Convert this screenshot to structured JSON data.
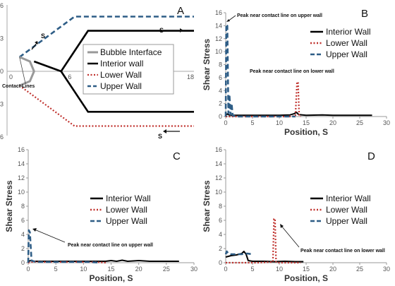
{
  "chart_data": [
    {
      "panel": "A",
      "type": "line",
      "panel_label": "A",
      "xlim": [
        0,
        18
      ],
      "ylim": [
        -6,
        6
      ],
      "x_ticks": [
        "0",
        "6",
        "18"
      ],
      "y_ticks": [
        "6",
        "3",
        "0",
        "-3",
        "-6"
      ],
      "legend": [
        "Bubble Interface",
        "Interior wall",
        "Lower Wall",
        "Upper Wall"
      ],
      "annotations": [
        "Contact Lines",
        "S",
        "S",
        "S"
      ],
      "series": [
        {
          "name": "Upper Wall",
          "style": "dashed",
          "color": "#2e5d86",
          "x": [
            1.2,
            6.5,
            18
          ],
          "y": [
            1.3,
            5.0,
            5.0
          ]
        },
        {
          "name": "Interior wall",
          "style": "solid",
          "color": "#000000",
          "x": [
            2.6,
            5.2,
            7.8,
            18
          ],
          "y": [
            0.9,
            0,
            -3.7,
            -3.7
          ]
        },
        {
          "name": "Interior wall upper",
          "style": "solid",
          "color": "#000000",
          "x": [
            5.2,
            7.8,
            18
          ],
          "y": [
            0,
            3.7,
            3.7
          ]
        },
        {
          "name": "Lower Wall",
          "style": "dotted",
          "color": "#c0322e",
          "x": [
            1.2,
            6.5,
            18
          ],
          "y": [
            -1.3,
            -5.0,
            -5.0
          ]
        },
        {
          "name": "Bubble Interface",
          "style": "solid",
          "color": "#999999",
          "x": [
            1.2,
            2.2,
            2.6,
            2.2,
            1.2
          ],
          "y": [
            1.3,
            0.9,
            0,
            -0.9,
            -1.3
          ]
        }
      ]
    },
    {
      "panel": "B",
      "type": "line",
      "panel_label": "B",
      "xlabel": "Position, S",
      "ylabel": "Shear Stress",
      "xlim": [
        0,
        30
      ],
      "ylim": [
        0,
        16
      ],
      "x_ticks": [
        "0",
        "5",
        "10",
        "15",
        "20",
        "25",
        "30"
      ],
      "y_ticks": [
        "0",
        "2",
        "4",
        "6",
        "8",
        "10",
        "12",
        "14",
        "16"
      ],
      "legend": [
        "Interior Wall",
        "Lower Wall",
        "Upper Wall"
      ],
      "annotations": [
        "Peak near contact line on upper wall",
        "Peak near contact line on lower wall"
      ],
      "series": [
        {
          "name": "Interior Wall",
          "style": "solid",
          "color": "#000000",
          "x": [
            0,
            0.3,
            0.6,
            1,
            2,
            5,
            8,
            10,
            12,
            12.8,
            13.2,
            13.6,
            15,
            18,
            20,
            22,
            25,
            27.3
          ],
          "y": [
            0.2,
            0.4,
            0.25,
            0.2,
            0.2,
            0.2,
            0.2,
            0.2,
            0.25,
            0.45,
            0.65,
            0.3,
            0.2,
            0.25,
            0.2,
            0.2,
            0.2,
            0.2
          ]
        },
        {
          "name": "Lower Wall",
          "style": "dotted",
          "color": "#c0322e",
          "x": [
            0,
            1,
            2,
            5,
            8,
            10,
            12,
            13.0,
            13.3,
            13.5,
            13.7,
            14
          ],
          "y": [
            0,
            0,
            0,
            0,
            0,
            0,
            0,
            0.1,
            5.3,
            5.3,
            0.1,
            0
          ]
        },
        {
          "name": "Upper Wall",
          "style": "dashed",
          "color": "#2e5d86",
          "x": [
            0,
            0.1,
            0.3,
            0.5,
            0.7,
            0.9,
            1.1,
            1.3,
            1.5,
            2,
            5,
            10,
            13
          ],
          "y": [
            0,
            14.2,
            14.0,
            0.5,
            3.4,
            0.3,
            2.0,
            0.2,
            0.1,
            0,
            0,
            0,
            0
          ]
        }
      ]
    },
    {
      "panel": "C",
      "type": "line",
      "panel_label": "C",
      "xlabel": "Position, S",
      "ylabel": "Shear Stress",
      "xlim": [
        0,
        30
      ],
      "ylim": [
        0,
        16
      ],
      "x_ticks": [
        "0",
        "5",
        "10",
        "15",
        "20",
        "25",
        "30"
      ],
      "y_ticks": [
        "0",
        "2",
        "4",
        "6",
        "8",
        "10",
        "12",
        "14",
        "16"
      ],
      "legend": [
        "Interior Wall",
        "Lower Wall",
        "Upper Wall"
      ],
      "annotations": [
        "Peak near contact line on upper wall"
      ],
      "series": [
        {
          "name": "Interior Wall",
          "style": "solid",
          "color": "#000000",
          "x": [
            0,
            0.5,
            1,
            3,
            6,
            9,
            12,
            14,
            15,
            16,
            17,
            18,
            20,
            22,
            25,
            27.3
          ],
          "y": [
            0.2,
            0.3,
            0.2,
            0.2,
            0.2,
            0.2,
            0.2,
            0.2,
            0.3,
            0.2,
            0.35,
            0.2,
            0.3,
            0.2,
            0.2,
            0.2
          ]
        },
        {
          "name": "Lower Wall",
          "style": "dotted",
          "color": "#c0322e",
          "x": [
            0,
            1,
            3,
            6,
            9,
            12,
            14
          ],
          "y": [
            0,
            0.15,
            0.1,
            0.1,
            0.1,
            0.1,
            0
          ]
        },
        {
          "name": "Upper Wall",
          "style": "dashed",
          "color": "#2e5d86",
          "x": [
            0,
            0.1,
            0.3,
            0.6,
            1,
            2,
            5,
            8,
            11,
            13
          ],
          "y": [
            0,
            4.6,
            4.3,
            0.3,
            0.2,
            0.1,
            0.1,
            0.1,
            0.1,
            0
          ]
        }
      ]
    },
    {
      "panel": "D",
      "type": "line",
      "panel_label": "D",
      "xlabel": "Position, S",
      "ylabel": "Shear Stress",
      "xlim": [
        0,
        30
      ],
      "ylim": [
        0,
        16
      ],
      "x_ticks": [
        "0",
        "5",
        "10",
        "15",
        "20",
        "25",
        "30"
      ],
      "y_ticks": [
        "0",
        "2",
        "4",
        "6",
        "8",
        "10",
        "12",
        "14",
        "16"
      ],
      "legend": [
        "Interior Wall",
        "Lower Wall",
        "Upper Wall"
      ],
      "annotations": [
        "Peak near contact line on lower wall"
      ],
      "series": [
        {
          "name": "Interior Wall",
          "style": "solid",
          "color": "#000000",
          "x": [
            0,
            1,
            2,
            3,
            3.4,
            3.8,
            4.2,
            5,
            7,
            9,
            11,
            13,
            14.5
          ],
          "y": [
            0.8,
            1.0,
            1.1,
            1.3,
            1.6,
            1.2,
            0.3,
            0.2,
            0.2,
            0.15,
            0.2,
            0.15,
            0.15
          ]
        },
        {
          "name": "Lower Wall",
          "style": "dotted",
          "color": "#c0322e",
          "x": [
            0,
            3,
            6,
            8.8,
            9.0,
            9.2,
            9.4,
            10,
            12,
            14
          ],
          "y": [
            0,
            0,
            0,
            0.1,
            6.2,
            6.2,
            0.1,
            0,
            0,
            0
          ]
        },
        {
          "name": "Upper Wall",
          "style": "dashed",
          "color": "#2e5d86",
          "x": [
            0,
            0.2,
            0.5,
            1,
            2,
            3,
            4,
            5
          ],
          "y": [
            1.2,
            1.6,
            1.3,
            1.2,
            1.2,
            1.2,
            1.3,
            1.2
          ]
        }
      ]
    }
  ]
}
